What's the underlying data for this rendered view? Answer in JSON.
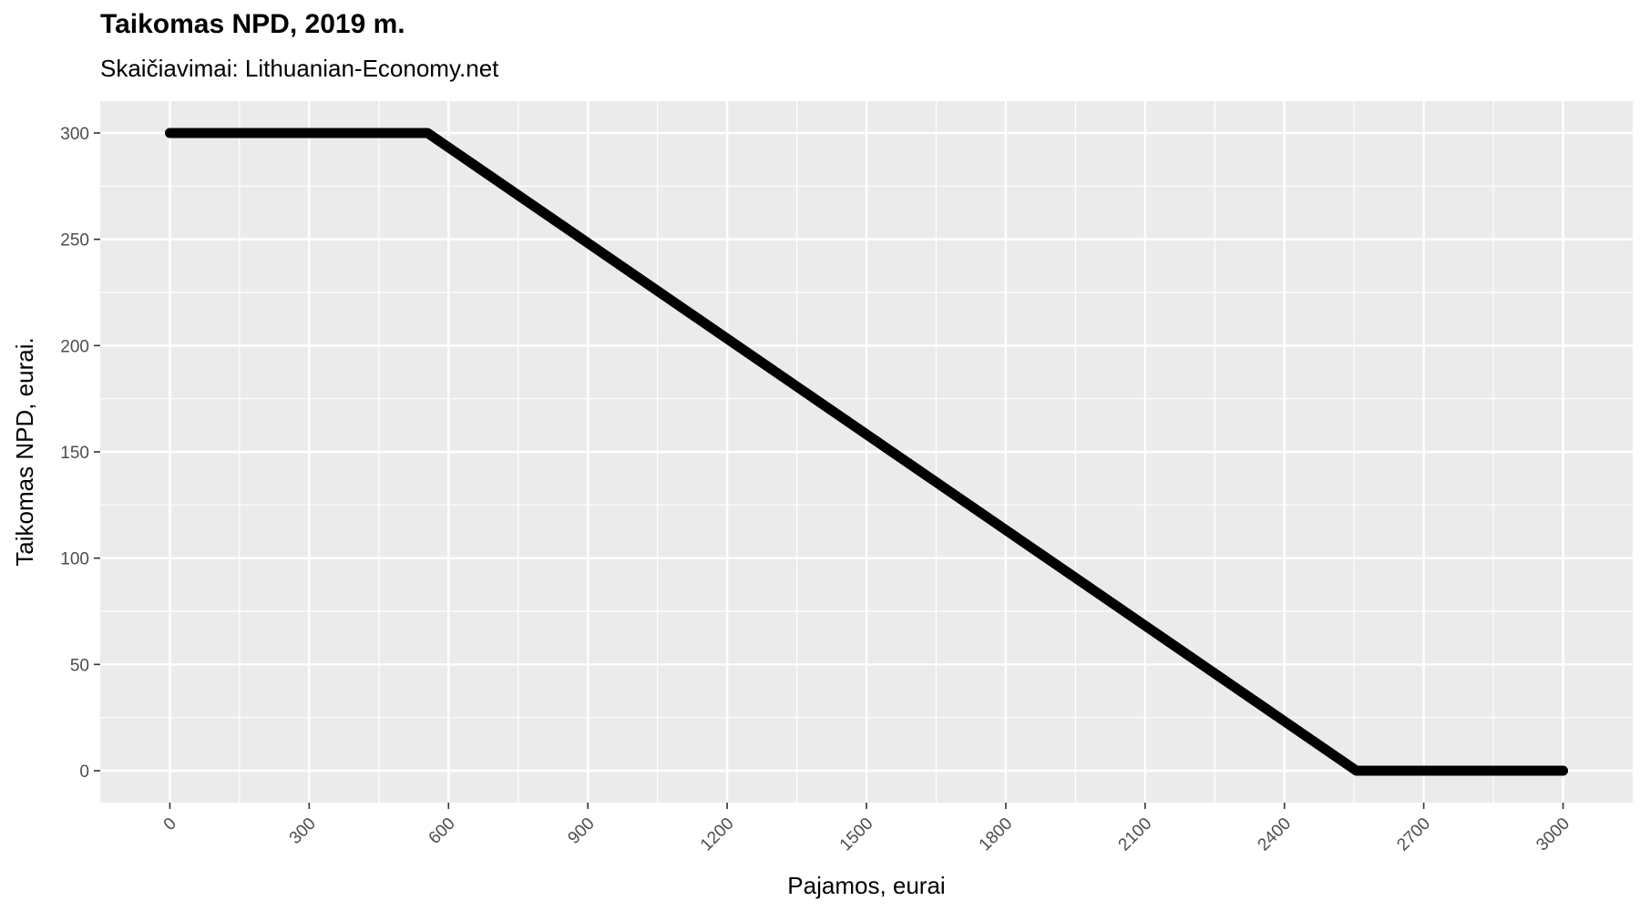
{
  "chart_data": {
    "type": "line",
    "title": "Taikomas NPD, 2019 m.",
    "subtitle": "Skaičiavimai: Lithuanian-Economy.net",
    "xlabel": "Pajamos, eurai",
    "ylabel": "Taikomas NPD, eurai.",
    "xlim": [
      -150,
      3150
    ],
    "ylim": [
      -15,
      315
    ],
    "x_ticks": [
      0,
      300,
      600,
      900,
      1200,
      1500,
      1800,
      2100,
      2400,
      2700,
      3000
    ],
    "x_tick_labels": [
      "0",
      "300",
      "600",
      "900",
      "1200",
      "1500",
      "1800",
      "2100",
      "2400",
      "2700",
      "3000"
    ],
    "y_ticks": [
      0,
      50,
      100,
      150,
      200,
      250,
      300
    ],
    "y_tick_labels": [
      "0",
      "50",
      "100",
      "150",
      "200",
      "250",
      "300"
    ],
    "grid": true,
    "background": "#ebebeb",
    "line_color": "#000000",
    "series": [
      {
        "x": [
          0,
          555,
          2555,
          3000
        ],
        "y": [
          300,
          300,
          0,
          0
        ]
      }
    ]
  }
}
